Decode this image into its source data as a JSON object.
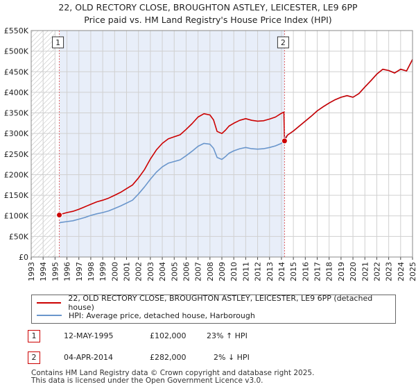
{
  "chart_data": {
    "type": "line",
    "title": "22, OLD RECTORY CLOSE, BROUGHTON ASTLEY, LEICESTER, LE9 6PP",
    "subtitle": "Price paid vs. HM Land Registry's House Price Index (HPI)",
    "xlim": [
      1993,
      2025
    ],
    "ylim": [
      0,
      550000
    ],
    "x_ticks": [
      "1993",
      "1994",
      "1995",
      "1996",
      "1997",
      "1998",
      "1999",
      "2000",
      "2001",
      "2002",
      "2003",
      "2004",
      "2005",
      "2006",
      "2007",
      "2008",
      "2009",
      "2010",
      "2011",
      "2012",
      "2013",
      "2014",
      "2015",
      "2016",
      "2017",
      "2018",
      "2019",
      "2020",
      "2021",
      "2022",
      "2023",
      "2024",
      "2025"
    ],
    "y_ticks": [
      0,
      50000,
      100000,
      150000,
      200000,
      250000,
      300000,
      350000,
      400000,
      450000,
      500000,
      550000
    ],
    "y_tick_labels": [
      "£0",
      "£50K",
      "£100K",
      "£150K",
      "£200K",
      "£250K",
      "£300K",
      "£350K",
      "£400K",
      "£450K",
      "£500K",
      "£550K"
    ],
    "hatched_before": 1995.0,
    "shaded_region": [
      1995.36,
      2014.26
    ],
    "series": [
      {
        "name": "22, OLD RECTORY CLOSE, BROUGHTON ASTLEY, LEICESTER, LE9 6PP (detached house)",
        "color": "#cc0000",
        "x": [
          1995.36,
          1995.5,
          1996.0,
          1996.5,
          1997.0,
          1997.5,
          1998.0,
          1998.5,
          1999.0,
          1999.5,
          2000.0,
          2000.5,
          2001.0,
          2001.5,
          2002.0,
          2002.5,
          2003.0,
          2003.5,
          2004.0,
          2004.5,
          2005.0,
          2005.5,
          2006.0,
          2006.5,
          2007.0,
          2007.5,
          2008.0,
          2008.3,
          2008.6,
          2009.0,
          2009.3,
          2009.6,
          2010.0,
          2010.5,
          2011.0,
          2011.5,
          2012.0,
          2012.5,
          2013.0,
          2013.5,
          2014.0,
          2014.2,
          2014.26,
          2014.5,
          2015.0,
          2015.5,
          2016.0,
          2016.5,
          2017.0,
          2017.5,
          2018.0,
          2018.5,
          2019.0,
          2019.5,
          2020.0,
          2020.5,
          2021.0,
          2021.5,
          2022.0,
          2022.5,
          2023.0,
          2023.5,
          2024.0,
          2024.5,
          2025.0
        ],
        "y": [
          102000,
          104000,
          108000,
          111000,
          116000,
          122000,
          128000,
          134000,
          138000,
          143000,
          150000,
          157000,
          166000,
          175000,
          192000,
          212000,
          238000,
          260000,
          276000,
          287000,
          292000,
          297000,
          310000,
          324000,
          340000,
          348000,
          345000,
          333000,
          305000,
          300000,
          308000,
          318000,
          325000,
          332000,
          336000,
          332000,
          330000,
          331000,
          335000,
          340000,
          349000,
          352000,
          282000,
          296000,
          306000,
          318000,
          330000,
          342000,
          355000,
          365000,
          374000,
          382000,
          388000,
          392000,
          388000,
          397000,
          413000,
          428000,
          444000,
          456000,
          453000,
          447000,
          456000,
          452000,
          480000
        ]
      },
      {
        "name": "HPI: Average price, detached house, Harborough",
        "color": "#6a96cc",
        "x": [
          1995.36,
          1995.5,
          1996.0,
          1996.5,
          1997.0,
          1997.5,
          1998.0,
          1998.5,
          1999.0,
          1999.5,
          2000.0,
          2000.5,
          2001.0,
          2001.5,
          2002.0,
          2002.5,
          2003.0,
          2003.5,
          2004.0,
          2004.5,
          2005.0,
          2005.5,
          2006.0,
          2006.5,
          2007.0,
          2007.5,
          2008.0,
          2008.3,
          2008.6,
          2009.0,
          2009.3,
          2009.6,
          2010.0,
          2010.5,
          2011.0,
          2011.5,
          2012.0,
          2012.5,
          2013.0,
          2013.5,
          2014.0,
          2014.26,
          2014.5,
          2015.0,
          2015.5,
          2016.0,
          2016.5,
          2017.0,
          2017.5,
          2018.0,
          2018.5,
          2019.0,
          2019.5,
          2020.0,
          2020.5,
          2021.0,
          2021.5,
          2022.0,
          2022.5,
          2023.0,
          2023.5,
          2024.0,
          2024.5,
          2025.0
        ],
        "y": [
          83000,
          84000,
          86000,
          88000,
          92000,
          96000,
          101000,
          105000,
          108000,
          112000,
          118000,
          124000,
          131000,
          138000,
          153000,
          170000,
          189000,
          206000,
          219000,
          228000,
          232000,
          236000,
          246000,
          257000,
          269000,
          276000,
          274000,
          264000,
          242000,
          237000,
          244000,
          252000,
          258000,
          263000,
          266000,
          263000,
          262000,
          263000,
          266000,
          270000,
          276000,
          288000,
          296000,
          306000,
          318000,
          330000,
          342000,
          355000,
          365000,
          374000,
          382000,
          388000,
          392000,
          388000,
          397000,
          413000,
          428000,
          444000,
          456000,
          453000,
          447000,
          456000,
          452000,
          480000
        ]
      }
    ],
    "markers": [
      {
        "label": "1",
        "x": 1995.36,
        "y": 102000
      },
      {
        "label": "2",
        "x": 2014.26,
        "y": 282000
      }
    ]
  },
  "legend": {
    "property_label": "22, OLD RECTORY CLOSE, BROUGHTON ASTLEY, LEICESTER, LE9 6PP (detached house)",
    "hpi_label": "HPI: Average price, detached house, Harborough"
  },
  "sales": [
    {
      "num": "1",
      "date": "12-MAY-1995",
      "price": "£102,000",
      "hpi": "23% ↑ HPI"
    },
    {
      "num": "2",
      "date": "04-APR-2014",
      "price": "£282,000",
      "hpi": "2% ↓ HPI"
    }
  ],
  "footer": {
    "line1": "Contains HM Land Registry data © Crown copyright and database right 2025.",
    "line2": "This data is licensed under the Open Government Licence v3.0."
  }
}
